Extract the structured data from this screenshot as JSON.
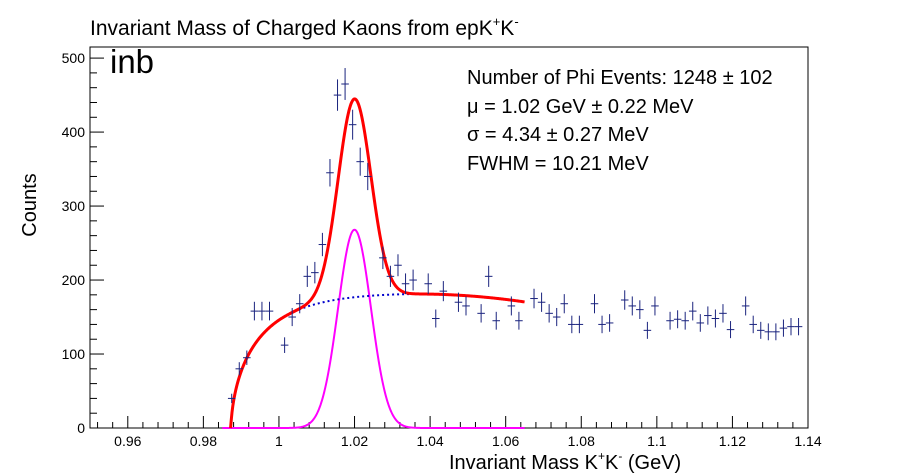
{
  "chart_data": {
    "type": "scatter",
    "title_main": "Invariant Mass of Charged Kaons from epK",
    "title_sup1": "+",
    "title_mid": "K",
    "title_sup2": "-",
    "tag": "inb",
    "xlabel_main": "Invariant Mass K",
    "xlabel_sup1": "+",
    "xlabel_mid": "K",
    "xlabel_sup2": "-",
    "xlabel_tail": " (GeV)",
    "ylabel": "Counts",
    "xlim": [
      0.95,
      1.14
    ],
    "ylim": [
      0,
      515
    ],
    "x_ticks": [
      0.96,
      0.98,
      1.0,
      1.02,
      1.04,
      1.06,
      1.08,
      1.1,
      1.12,
      1.14
    ],
    "x_tick_labels": [
      "0.96",
      "0.98",
      "1",
      "1.02",
      "1.04",
      "1.06",
      "1.08",
      "1.1",
      "1.12",
      "1.14"
    ],
    "y_ticks": [
      0,
      100,
      200,
      300,
      400,
      500
    ],
    "y_tick_labels": [
      "0",
      "100",
      "200",
      "300",
      "400",
      "500"
    ],
    "grid": false,
    "annotations": [
      "Number of Phi Events: 1248 ± 102",
      "μ =   1.02 GeV ± 0.22 MeV",
      "σ = 4.34 ± 0.27 MeV",
      "FWHM = 10.21 MeV"
    ],
    "bin_half_width": 0.001,
    "points": [
      [
        0.9875,
        40
      ],
      [
        0.9895,
        80
      ],
      [
        0.9915,
        95
      ],
      [
        0.9935,
        158
      ],
      [
        0.9955,
        158
      ],
      [
        0.9975,
        158
      ],
      [
        1.0015,
        112
      ],
      [
        1.0035,
        150
      ],
      [
        1.0055,
        168
      ],
      [
        1.0075,
        205
      ],
      [
        1.0095,
        210
      ],
      [
        1.0115,
        248
      ],
      [
        1.0135,
        345
      ],
      [
        1.0155,
        450
      ],
      [
        1.0175,
        465
      ],
      [
        1.0195,
        410
      ],
      [
        1.0215,
        360
      ],
      [
        1.0235,
        340
      ],
      [
        1.0275,
        230
      ],
      [
        1.0295,
        205
      ],
      [
        1.0315,
        220
      ],
      [
        1.0335,
        195
      ],
      [
        1.0355,
        200
      ],
      [
        1.0395,
        195
      ],
      [
        1.0415,
        148
      ],
      [
        1.0435,
        185
      ],
      [
        1.0475,
        170
      ],
      [
        1.0495,
        165
      ],
      [
        1.0535,
        155
      ],
      [
        1.0555,
        205
      ],
      [
        1.0575,
        145
      ],
      [
        1.0615,
        165
      ],
      [
        1.0635,
        145
      ],
      [
        1.0675,
        175
      ],
      [
        1.0695,
        170
      ],
      [
        1.0715,
        155
      ],
      [
        1.0735,
        150
      ],
      [
        1.0755,
        168
      ],
      [
        1.0775,
        140
      ],
      [
        1.0795,
        140
      ],
      [
        1.0835,
        168
      ],
      [
        1.0855,
        140
      ],
      [
        1.0875,
        142
      ],
      [
        1.0915,
        173
      ],
      [
        1.0935,
        165
      ],
      [
        1.0955,
        160
      ],
      [
        1.0975,
        132
      ],
      [
        1.0995,
        165
      ],
      [
        1.1035,
        145
      ],
      [
        1.1055,
        147
      ],
      [
        1.1075,
        145
      ],
      [
        1.1095,
        158
      ],
      [
        1.1115,
        142
      ],
      [
        1.1135,
        152
      ],
      [
        1.1155,
        148
      ],
      [
        1.1175,
        155
      ],
      [
        1.1195,
        133
      ],
      [
        1.1235,
        165
      ],
      [
        1.1255,
        140
      ],
      [
        1.1275,
        132
      ],
      [
        1.1295,
        130
      ],
      [
        1.1315,
        130
      ],
      [
        1.1335,
        135
      ],
      [
        1.1355,
        137
      ],
      [
        1.1375,
        137
      ]
    ],
    "series": [
      {
        "type": "markers",
        "color": "#1a237e"
      },
      {
        "type": "total_fit",
        "color": "#ff0000"
      },
      {
        "type": "background_fit",
        "color": "#0000cc",
        "style": "dotted"
      },
      {
        "type": "signal_gaussian",
        "color": "#ff00ff"
      }
    ],
    "fit_params": {
      "mu": 1.02,
      "sigma": 0.00434,
      "signal_amplitude": 268,
      "threshold": 0.9872,
      "background_peak": 182,
      "background_peak_x": 1.034,
      "background_slope": -750,
      "background_shape_k": 0.0105,
      "fit_range": [
        0.9872,
        1.065
      ],
      "signal_range": [
        0.985,
        1.065
      ]
    }
  }
}
